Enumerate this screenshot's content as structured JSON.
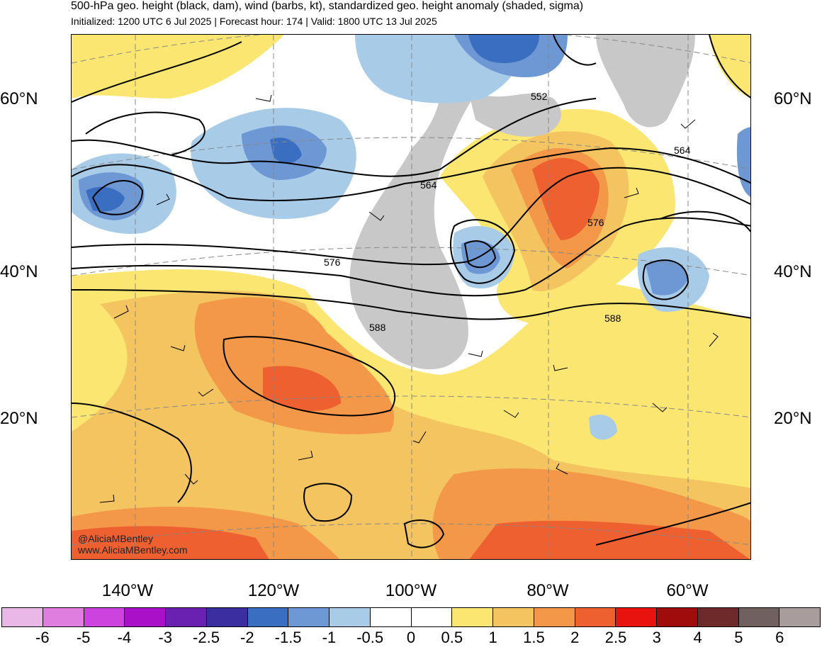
{
  "header": {
    "title": "500-hPa geo. height (black, dam), wind (barbs, kt), standardized geo. height anomaly (shaded, sigma)",
    "subtitle": "Initialized: 1200 UTC 6 Jul 2025 | Forecast hour: 174 | Valid: 1800 UTC 13 Jul 2025"
  },
  "map": {
    "lat_labels_left": [
      "60°N",
      "40°N",
      "20°N"
    ],
    "lat_labels_right": [
      "60°N",
      "40°N",
      "20°N"
    ],
    "lon_labels": [
      "140°W",
      "120°W",
      "100°W",
      "80°W",
      "60°W"
    ],
    "contour_labels": [
      "552",
      "564",
      "564",
      "576",
      "576",
      "588",
      "588"
    ],
    "credit_handle": "@AliciaMBentley",
    "credit_url": "www.AliciaMBentley.com"
  },
  "colorbar": {
    "labels": [
      "-6",
      "-5",
      "-4",
      "-3",
      "-2.5",
      "-2",
      "-1.5",
      "-1",
      "-0.5",
      "0",
      "0.5",
      "1",
      "1.5",
      "2",
      "2.5",
      "3",
      "4",
      "5",
      "6"
    ],
    "colors": [
      "#eab8e6",
      "#e07ee0",
      "#cc44dd",
      "#aa10c8",
      "#6a20b0",
      "#3a2ea0",
      "#3a6ec0",
      "#6e98d4",
      "#a8cbe8",
      "#ffffff",
      "#ffffff",
      "#fbe672",
      "#f4c460",
      "#f29848",
      "#ee6030",
      "#e8120e",
      "#a00c0c",
      "#6e2a2a",
      "#706060",
      "#a89c9c"
    ]
  }
}
